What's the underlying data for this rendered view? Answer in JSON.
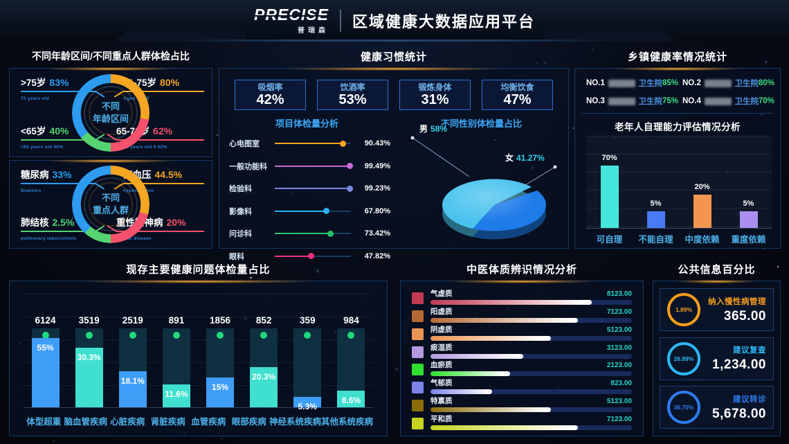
{
  "header": {
    "logo": "PRECISE",
    "logo_sub": "普瑞森",
    "title": "区域健康大数据应用平台"
  },
  "panels": {
    "demographics": {
      "title": "不同年龄区间/不同重点人群体检占比",
      "age": {
        "center1": "不同",
        "center2": "年龄区间",
        "labels": {
          "tl": {
            "name": ">75岁",
            "pct": "83%",
            "sub": "75 years old",
            "color": "#2d9cf0"
          },
          "tr": {
            "name": "71-75岁",
            "pct": "80%",
            "sub": "Aged 71-75",
            "color": "#f5a623"
          },
          "bl": {
            "name": "<65岁",
            "pct": "40%",
            "sub": "<65 years old 40%",
            "color": "#56d472"
          },
          "br": {
            "name": "65-70岁",
            "pct": "62%",
            "sub": "65-70 years old 6 62%",
            "color": "#f4516c"
          }
        },
        "segments": [
          {
            "color": "#f5a623",
            "deg": 100
          },
          {
            "color": "#f4516c",
            "deg": 80
          },
          {
            "color": "#56d472",
            "deg": 50
          },
          {
            "color": "#2d9cf0",
            "deg": 130
          }
        ]
      },
      "group": {
        "center1": "不同",
        "center2": "重点人群",
        "labels": {
          "tl": {
            "name": "糖尿病",
            "pct": "33%",
            "sub": "Diabetes",
            "color": "#2d9cf0"
          },
          "tr": {
            "name": "高血压",
            "pct": "44.5%",
            "sub": "hypertension",
            "color": "#f5a623"
          },
          "bl": {
            "name": "肺结核",
            "pct": "2.5%",
            "sub": "pulmonary tuberculosis",
            "color": "#56d472"
          },
          "br": {
            "name": "重性精神病",
            "pct": "20%",
            "sub": "mental disease",
            "color": "#f4516c"
          }
        },
        "segments": [
          {
            "color": "#f5a623",
            "deg": 105
          },
          {
            "color": "#f4516c",
            "deg": 75
          },
          {
            "color": "#56d472",
            "deg": 42
          },
          {
            "color": "#2d9cf0",
            "deg": 138
          }
        ]
      }
    },
    "habits": {
      "title": "健康习惯统计",
      "stats": [
        {
          "label": "吸烟率",
          "value": "42%"
        },
        {
          "label": "饮酒率",
          "value": "53%"
        },
        {
          "label": "锻炼身体",
          "value": "31%"
        },
        {
          "label": "均衡饮食",
          "value": "47%"
        }
      ],
      "checkup": {
        "subtitle": "项目体检量分析",
        "items": [
          {
            "label": "心电图室",
            "value": "90.43%",
            "pct": 90.43,
            "color": "#f5a623"
          },
          {
            "label": "一般功能科",
            "value": "99.49%",
            "pct": 99.49,
            "color": "#c86ad8"
          },
          {
            "label": "检验科",
            "value": "99.23%",
            "pct": 99.23,
            "color": "#7b86e0"
          },
          {
            "label": "影像科",
            "value": "67.80%",
            "pct": 67.8,
            "color": "#2bb1f5"
          },
          {
            "label": "问诊科",
            "value": "73.42%",
            "pct": 73.42,
            "color": "#27c26a"
          },
          {
            "label": "眼科",
            "value": "47.82%",
            "pct": 47.82,
            "color": "#f0317a"
          }
        ]
      },
      "gender": {
        "subtitle": "不同性别体检量占比",
        "male_label": "男",
        "male_pct": "58%",
        "male_color": "#49c3ee",
        "female_label": "女",
        "female_pct": "41.27%",
        "female_color": "#1e7ce8"
      }
    },
    "township": {
      "title": "乡镇健康率情况统计",
      "entries": [
        {
          "no": "NO.1",
          "suffix": "卫生院",
          "pct": "85%"
        },
        {
          "no": "NO.2",
          "suffix": "卫生院",
          "pct": "80%"
        },
        {
          "no": "NO.3",
          "suffix": "卫生院",
          "pct": "75%"
        },
        {
          "no": "NO.4",
          "suffix": "卫生院",
          "pct": "70%"
        }
      ],
      "elderly": {
        "subtitle": "老年人自理能力评估情况分析",
        "bars": [
          {
            "label": "可自理",
            "pct": 70,
            "display": "70%",
            "color": "#45e6dc"
          },
          {
            "label": "不能自理",
            "pct": 5,
            "display": "5%",
            "color": "#4a7bf7"
          },
          {
            "label": "中度依赖",
            "pct": 20,
            "display": "20%",
            "color": "#f2954f"
          },
          {
            "label": "重度依赖",
            "pct": 5,
            "display": "5%",
            "color": "#ab8ef0"
          }
        ]
      }
    },
    "problems": {
      "title": "现存主要健康问题体检量占比",
      "bars": [
        {
          "label": "体型超重",
          "count": "6124",
          "pct": 55,
          "display": "55%",
          "color": "#3f9ef8"
        },
        {
          "label": "脑血管疾病",
          "count": "3519",
          "pct": 30.3,
          "display": "30.3%",
          "color": "#3fe0cf"
        },
        {
          "label": "心脏疾病",
          "count": "2519",
          "pct": 18.1,
          "display": "18.1%",
          "color": "#3f9ef8"
        },
        {
          "label": "肾脏疾病",
          "count": "891",
          "pct": 11.6,
          "display": "11.6%",
          "color": "#3fe0cf"
        },
        {
          "label": "血管疾病",
          "count": "1856",
          "pct": 15,
          "display": "15%",
          "color": "#3f9ef8"
        },
        {
          "label": "眼部疾病",
          "count": "852",
          "pct": 20.3,
          "display": "20.3%",
          "color": "#3fe0cf"
        },
        {
          "label": "神经系统疾病",
          "count": "359",
          "pct": 5.3,
          "display": "5.3%",
          "color": "#3f9ef8"
        },
        {
          "label": "其他系统疾病",
          "count": "984",
          "pct": 8.6,
          "display": "8.6%",
          "color": "#3fe0cf"
        }
      ]
    },
    "tcm": {
      "title": "中医体质辨识情况分析",
      "rows": [
        {
          "label": "气虚质",
          "value": 8123,
          "display": "8123.00",
          "color": "#c23a52"
        },
        {
          "label": "阳虚质",
          "value": 7123,
          "display": "7123.00",
          "color": "#b56a35"
        },
        {
          "label": "阴虚质",
          "value": 5123,
          "display": "5123.00",
          "color": "#eb9554"
        },
        {
          "label": "痰湿质",
          "value": 3123,
          "display": "3123.00",
          "color": "#b49ae0"
        },
        {
          "label": "血瘀质",
          "value": 2123,
          "display": "2123.00",
          "color": "#2fe02f"
        },
        {
          "label": "气郁质",
          "value": 823,
          "display": "823.00",
          "color": "#7c83e8"
        },
        {
          "label": "特禀质",
          "value": 5123,
          "display": "5123.00",
          "color": "#8a6d0a"
        },
        {
          "label": "平和质",
          "value": 7123,
          "display": "7123.00",
          "color": "#c6d420"
        }
      ]
    },
    "public": {
      "title": "公共信息百分比",
      "cards": [
        {
          "pct": "1.89%",
          "label": "纳入慢性病管理",
          "value": "365.00",
          "color": "#f59d1d"
        },
        {
          "pct": "26.89%",
          "label": "建议复查",
          "value": "1,234.00",
          "color": "#2bb7f5"
        },
        {
          "pct": "36.70%",
          "label": "建议转诊",
          "value": "5,678.00",
          "color": "#2e7bf0"
        }
      ]
    }
  },
  "chart_data": [
    {
      "type": "pie",
      "title": "不同年龄区间",
      "labels": [
        ">75岁",
        "71-75岁",
        "65-70岁",
        "<65岁"
      ],
      "values": [
        83,
        80,
        62,
        40
      ],
      "unit": "%"
    },
    {
      "type": "pie",
      "title": "不同重点人群",
      "labels": [
        "糖尿病",
        "高血压",
        "重性精神病",
        "肺结核"
      ],
      "values": [
        33,
        44.5,
        20,
        2.5
      ],
      "unit": "%"
    },
    {
      "type": "table",
      "title": "健康习惯统计",
      "categories": [
        "吸烟率",
        "饮酒率",
        "锻炼身体",
        "均衡饮食"
      ],
      "values": [
        42,
        53,
        31,
        47
      ],
      "unit": "%"
    },
    {
      "type": "scatter",
      "title": "项目体检量分析",
      "categories": [
        "心电图室",
        "一般功能科",
        "检验科",
        "影像科",
        "问诊科",
        "眼科"
      ],
      "values": [
        90.43,
        99.49,
        99.23,
        67.8,
        73.42,
        47.82
      ],
      "unit": "%"
    },
    {
      "type": "pie",
      "title": "不同性别体检量占比",
      "labels": [
        "男",
        "女"
      ],
      "values": [
        58,
        41.27
      ],
      "unit": "%"
    },
    {
      "type": "table",
      "title": "乡镇健康率情况统计",
      "categories": [
        "NO.1 卫生院",
        "NO.2 卫生院",
        "NO.3 卫生院",
        "NO.4 卫生院"
      ],
      "values": [
        85,
        80,
        75,
        70
      ],
      "unit": "%"
    },
    {
      "type": "bar",
      "title": "老年人自理能力评估情况分析",
      "categories": [
        "可自理",
        "不能自理",
        "中度依赖",
        "重度依赖"
      ],
      "values": [
        70,
        5,
        20,
        5
      ],
      "unit": "%"
    },
    {
      "type": "bar",
      "title": "现存主要健康问题体检量占比",
      "categories": [
        "体型超重",
        "脑血管疾病",
        "心脏疾病",
        "肾脏疾病",
        "血管疾病",
        "眼部疾病",
        "神经系统疾病",
        "其他系统疾病"
      ],
      "counts": [
        6124,
        3519,
        2519,
        891,
        1856,
        852,
        359,
        984
      ],
      "percents": [
        55,
        30.3,
        18.1,
        11.6,
        15,
        20.3,
        5.3,
        8.6
      ]
    },
    {
      "type": "bar",
      "title": "中医体质辨识情况分析",
      "categories": [
        "气虚质",
        "阳虚质",
        "阴虚质",
        "痰湿质",
        "血瘀质",
        "气郁质",
        "特禀质",
        "平和质"
      ],
      "values": [
        8123,
        7123,
        5123,
        3123,
        2123,
        823,
        5123,
        7123
      ]
    },
    {
      "type": "table",
      "title": "公共信息百分比",
      "categories": [
        "纳入慢性病管理",
        "建议复查",
        "建议转诊"
      ],
      "percents": [
        1.89,
        26.89,
        36.7
      ],
      "values": [
        365,
        1234,
        5678
      ]
    }
  ]
}
